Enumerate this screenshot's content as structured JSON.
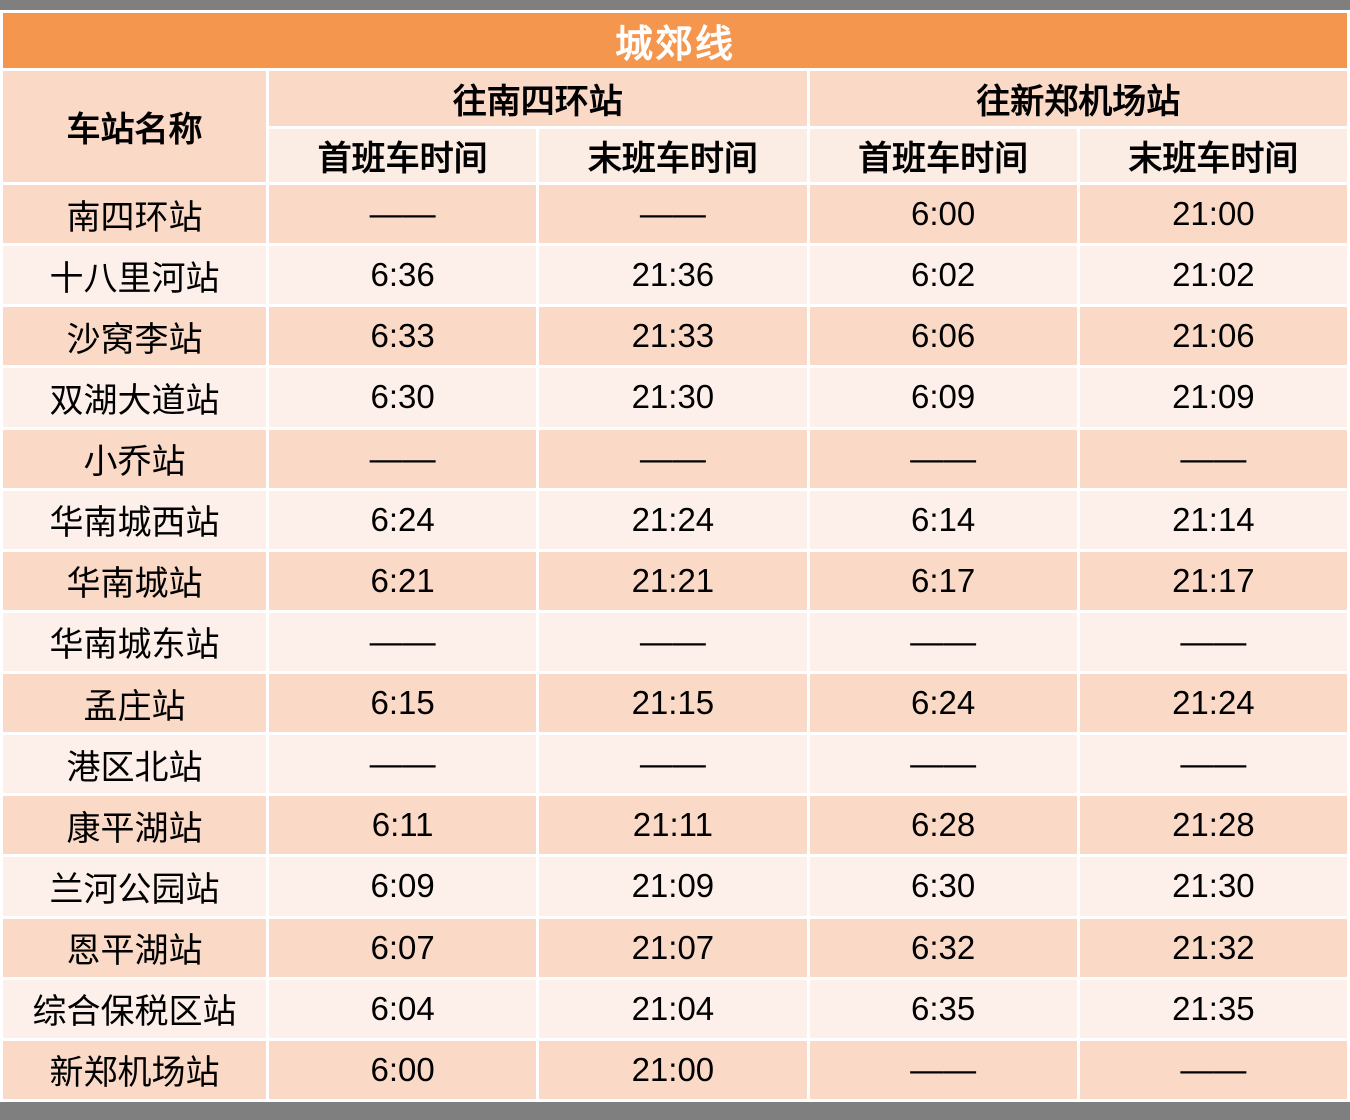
{
  "page": {
    "background_color": "#FFFFFF",
    "top_bar_color": "#7F7F7F",
    "bottom_bar_color": "#7F7F7F"
  },
  "colors": {
    "accent_orange": "#F4964D",
    "row_dark": "#FAD9C7",
    "row_light": "#FDF0EA",
    "subheader_bg": "#FCEDE4",
    "bar_gray": "#7F7F7F",
    "title_text": "#FFFFFF",
    "body_text": "#000000"
  },
  "timetable": {
    "title": "城郊线",
    "station_column_header": "车站名称",
    "direction_headers": [
      "往南四环站",
      "往新郑机场站"
    ],
    "sub_headers": [
      "首班车时间",
      "末班车时间",
      "首班车时间",
      "末班车时间"
    ],
    "no_service_symbol": "——",
    "rows": [
      {
        "station": "南四环站",
        "times": [
          "——",
          "——",
          "6:00",
          "21:00"
        ]
      },
      {
        "station": "十八里河站",
        "times": [
          "6:36",
          "21:36",
          "6:02",
          "21:02"
        ]
      },
      {
        "station": "沙窝李站",
        "times": [
          "6:33",
          "21:33",
          "6:06",
          "21:06"
        ]
      },
      {
        "station": "双湖大道站",
        "times": [
          "6:30",
          "21:30",
          "6:09",
          "21:09"
        ]
      },
      {
        "station": "小乔站",
        "times": [
          "——",
          "——",
          "——",
          "——"
        ]
      },
      {
        "station": "华南城西站",
        "times": [
          "6:24",
          "21:24",
          "6:14",
          "21:14"
        ]
      },
      {
        "station": "华南城站",
        "times": [
          "6:21",
          "21:21",
          "6:17",
          "21:17"
        ]
      },
      {
        "station": "华南城东站",
        "times": [
          "——",
          "——",
          "——",
          "——"
        ]
      },
      {
        "station": "孟庄站",
        "times": [
          "6:15",
          "21:15",
          "6:24",
          "21:24"
        ]
      },
      {
        "station": "港区北站",
        "times": [
          "——",
          "——",
          "——",
          "——"
        ]
      },
      {
        "station": "康平湖站",
        "times": [
          "6:11",
          "21:11",
          "6:28",
          "21:28"
        ]
      },
      {
        "station": "兰河公园站",
        "times": [
          "6:09",
          "21:09",
          "6:30",
          "21:30"
        ]
      },
      {
        "station": "恩平湖站",
        "times": [
          "6:07",
          "21:07",
          "6:32",
          "21:32"
        ]
      },
      {
        "station": "综合保税区站",
        "times": [
          "6:04",
          "21:04",
          "6:35",
          "21:35"
        ]
      },
      {
        "station": "新郑机场站",
        "times": [
          "6:00",
          "21:00",
          "——",
          "——"
        ]
      }
    ]
  }
}
